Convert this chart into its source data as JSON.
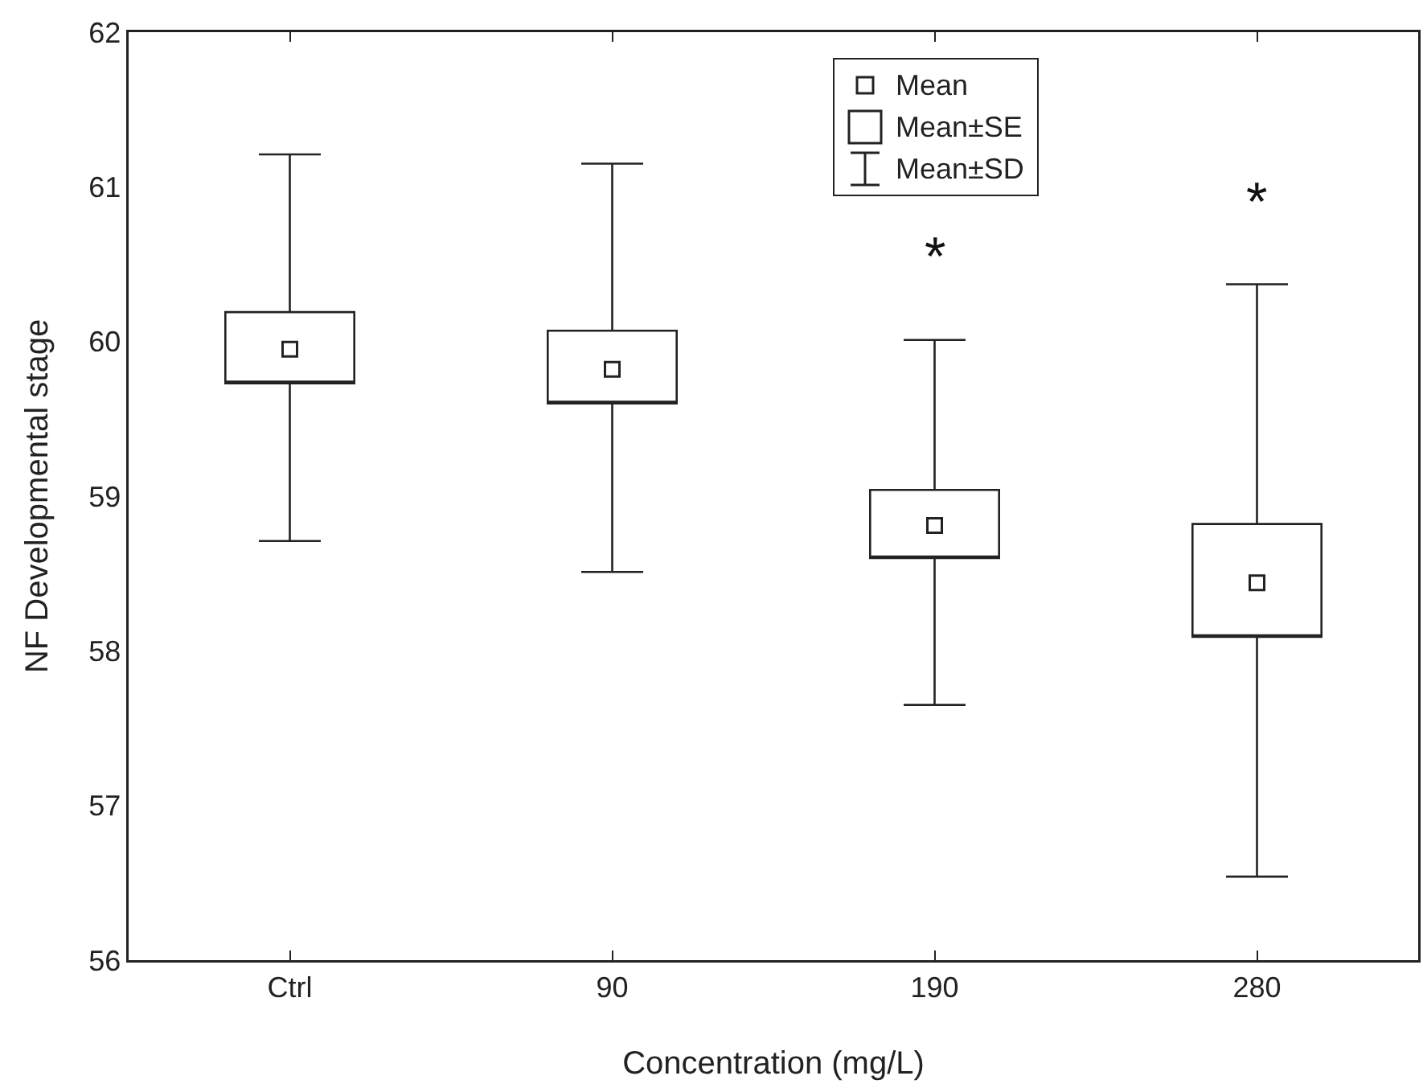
{
  "chart_data": {
    "type": "box",
    "xlabel": "Concentration (mg/L)",
    "ylabel": "NF Developmental stage",
    "categories": [
      "Ctrl",
      "90",
      "190",
      "280"
    ],
    "boxes": [
      {
        "low": 58.71,
        "q1": 59.73,
        "q3": 60.19,
        "high": 61.21,
        "mean": 59.95
      },
      {
        "low": 58.51,
        "q1": 59.6,
        "q3": 60.07,
        "high": 61.15,
        "mean": 59.82
      },
      {
        "low": 57.65,
        "q1": 58.6,
        "q3": 59.04,
        "high": 60.01,
        "mean": 58.81
      },
      {
        "low": 56.54,
        "q1": 58.09,
        "q3": 58.82,
        "high": 60.37,
        "mean": 58.44
      }
    ],
    "color": "#222222",
    "ylim": [
      56,
      62
    ],
    "yticks": [
      56,
      57,
      58,
      59,
      60,
      61,
      62
    ],
    "marker": "square",
    "annotations": [
      "Mean",
      "Mean±SE",
      "Mean±SD",
      "*",
      "*"
    ]
  }
}
